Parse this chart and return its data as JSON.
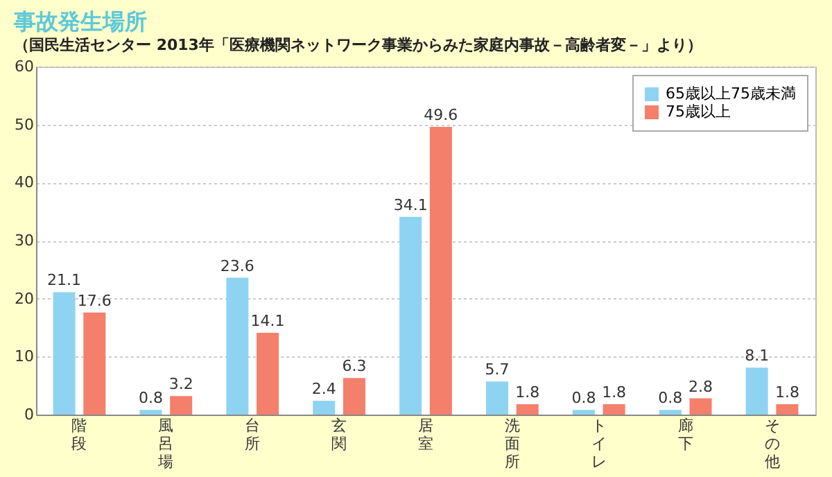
{
  "chart_data": {
    "type": "bar",
    "title": "事故発生場所",
    "subtitle": "（国民生活センター 2013年「医療機関ネットワーク事業からみた家庭内事故－高齢者変－」より）",
    "categories": [
      "階段",
      "風呂場",
      "台所",
      "玄関",
      "居室",
      "洗面所",
      "トイレ",
      "廊下",
      "その他"
    ],
    "series": [
      {
        "name": "65歳以上75歳未満",
        "color": "#8ed4f2",
        "values": [
          21.1,
          0.8,
          23.6,
          2.4,
          34.1,
          5.7,
          0.8,
          0.8,
          8.1
        ]
      },
      {
        "name": "75歳以上",
        "color": "#f47f6b",
        "values": [
          17.6,
          3.2,
          14.1,
          6.3,
          49.6,
          1.8,
          1.8,
          2.8,
          1.8
        ]
      }
    ],
    "ylim": [
      0,
      60
    ],
    "yticks": [
      0,
      10,
      20,
      30,
      40,
      50,
      60
    ],
    "grid": "y",
    "legend": "top right",
    "data_labels": true
  }
}
